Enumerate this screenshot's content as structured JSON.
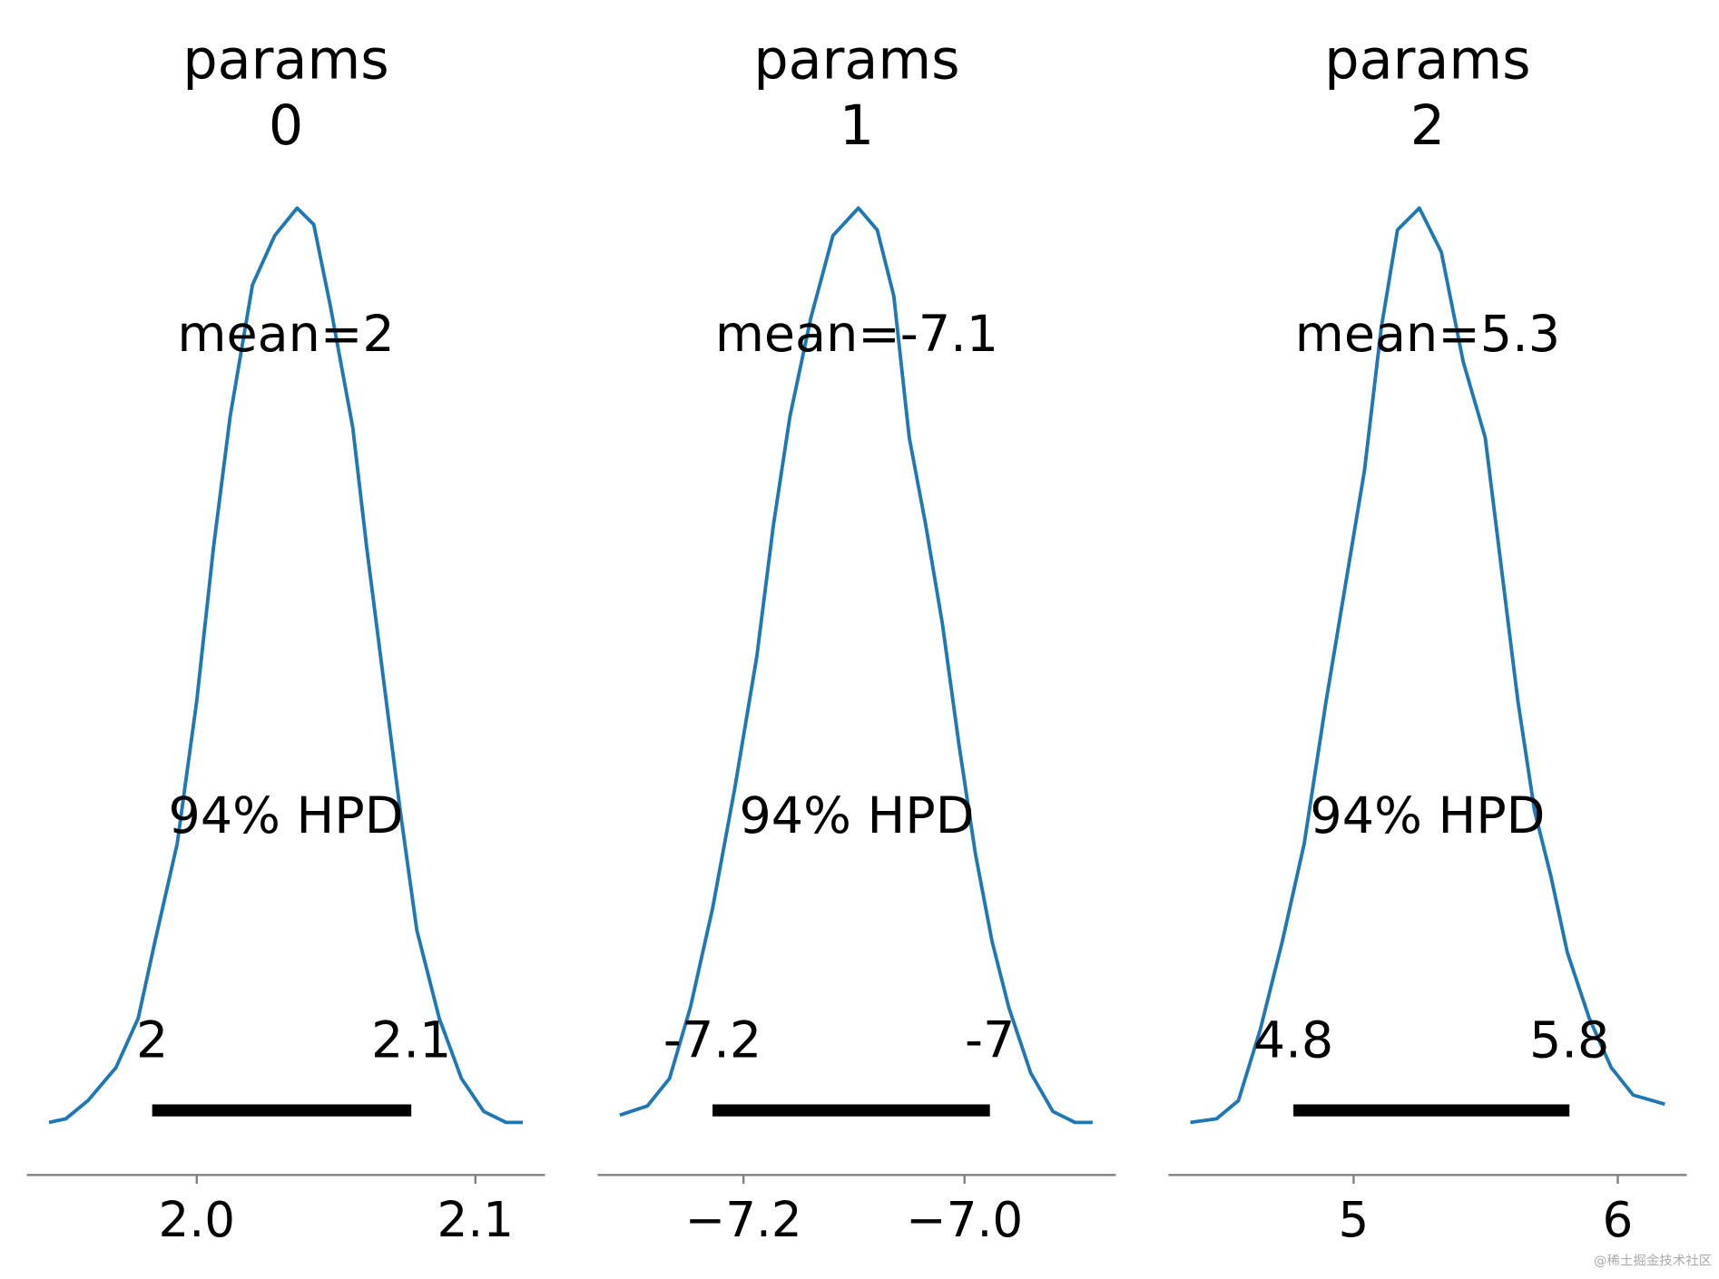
{
  "chart_data": [
    {
      "type": "density",
      "title_lines": [
        "params",
        "0"
      ],
      "color": "#1f77b4",
      "x": [
        1.947,
        1.953,
        1.961,
        1.971,
        1.979,
        1.985,
        1.993,
        2.0,
        2.006,
        2.012,
        2.02,
        2.028,
        2.036,
        2.042,
        2.048,
        2.056,
        2.061,
        2.067,
        2.073,
        2.079,
        2.087,
        2.095,
        2.103,
        2.111,
        2.117
      ],
      "values": [
        0,
        0.004,
        0.024,
        0.06,
        0.114,
        0.198,
        0.305,
        0.461,
        0.629,
        0.772,
        0.916,
        0.97,
        1,
        0.982,
        0.892,
        0.76,
        0.629,
        0.485,
        0.341,
        0.21,
        0.114,
        0.048,
        0.012,
        0,
        0
      ],
      "xlim": [
        1.939,
        2.125
      ],
      "xticks": [
        {
          "value": 2,
          "label": "2.0"
        },
        2.1
      ],
      "ylim": [
        0,
        1.05
      ],
      "mean_label": "mean=2",
      "hpd_label": "94% HPD",
      "hpd": [
        1.984,
        2.077
      ],
      "hpd_labels": [
        "2",
        "2.1"
      ]
    },
    {
      "type": "density",
      "title_lines": [
        "params",
        "1"
      ],
      "color": "#1f77b4",
      "x": [
        -7.312,
        -7.287,
        -7.267,
        -7.248,
        -7.228,
        -7.208,
        -7.188,
        -7.173,
        -7.158,
        -7.139,
        -7.119,
        -7.096,
        -7.079,
        -7.064,
        -7.05,
        -7.035,
        -7.02,
        -7.005,
        -6.99,
        -6.975,
        -6.96,
        -6.94,
        -6.92,
        -6.9,
        -6.884
      ],
      "values": [
        0.008,
        0.018,
        0.048,
        0.126,
        0.234,
        0.365,
        0.509,
        0.653,
        0.772,
        0.88,
        0.97,
        1,
        0.976,
        0.904,
        0.749,
        0.653,
        0.545,
        0.413,
        0.293,
        0.198,
        0.126,
        0.054,
        0.012,
        0,
        0
      ],
      "xlim": [
        -7.332,
        -6.863
      ],
      "xticks": [
        {
          "value": -7.2,
          "label": "−7.2"
        },
        {
          "value": -7,
          "label": "−7.0"
        }
      ],
      "ylim": [
        0,
        1.05
      ],
      "mean_label": "mean=-7.1",
      "hpd_label": "94% HPD",
      "hpd": [
        -7.228,
        -6.977
      ],
      "hpd_labels": [
        "-7.2",
        "-7"
      ]
    },
    {
      "type": "density",
      "title_lines": [
        "params",
        "2"
      ],
      "color": "#1f77b4",
      "x": [
        4.382,
        4.481,
        4.564,
        4.647,
        4.73,
        4.813,
        4.896,
        4.979,
        5.041,
        5.104,
        5.166,
        5.249,
        5.332,
        5.415,
        5.498,
        5.56,
        5.622,
        5.685,
        5.747,
        5.809,
        5.892,
        5.975,
        6.058,
        6.178
      ],
      "values": [
        0,
        0.004,
        0.024,
        0.102,
        0.198,
        0.305,
        0.461,
        0.605,
        0.713,
        0.868,
        0.976,
        1,
        0.952,
        0.832,
        0.749,
        0.605,
        0.461,
        0.341,
        0.269,
        0.186,
        0.114,
        0.06,
        0.03,
        0.02
      ],
      "xlim": [
        4.299,
        6.261
      ],
      "xticks": [
        5,
        6
      ],
      "ylim": [
        0,
        1.05
      ],
      "mean_label": "mean=5.3",
      "hpd_label": "94% HPD",
      "hpd": [
        4.772,
        5.817
      ],
      "hpd_labels": [
        "4.8",
        "5.8"
      ]
    }
  ],
  "watermark": "@稀土掘金技术社区"
}
